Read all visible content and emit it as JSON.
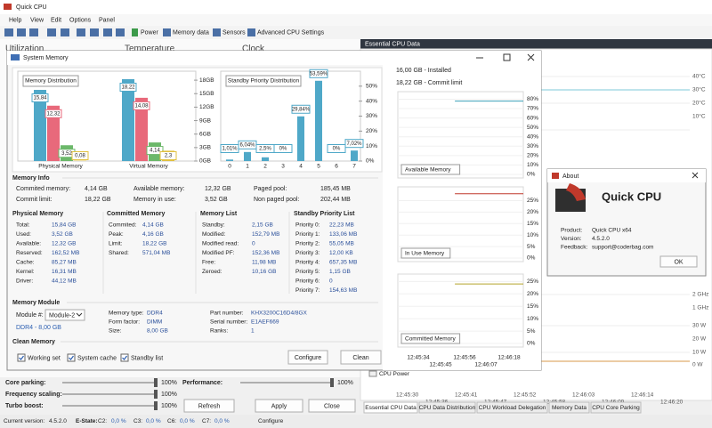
{
  "app": {
    "title": "Quick CPU",
    "menu": [
      "Help",
      "View",
      "Edit",
      "Options",
      "Panel"
    ],
    "toolbar": [
      "Power",
      "Memory data",
      "Sensors",
      "Advanced CPU Settings"
    ]
  },
  "background": {
    "panels": [
      "Utilization",
      "Temperature",
      "Clock"
    ],
    "data_title": "Essential CPU Data",
    "axis_labels": [
      "40°C",
      "30°C",
      "20°C",
      "10°C",
      "2 GHz",
      "1 GHz",
      "30 W",
      "20 W",
      "10 W",
      "0 W"
    ],
    "times": [
      "12:45:30",
      "12:45:36",
      "12:45:41",
      "12:45:47",
      "12:45:52",
      "12:45:58",
      "12:46:03",
      "12:46:09",
      "12:46:14",
      "12:46:20"
    ],
    "series_label": "CPU Power",
    "sliders": [
      {
        "label": "Core parking:",
        "value": "100%"
      },
      {
        "label": "Frequency scaling:",
        "value": "100%"
      },
      {
        "label": "Turbo boost:",
        "value": "100%"
      },
      {
        "label": "Performance:",
        "value": "100%"
      }
    ],
    "buttons": [
      "Refresh",
      "Apply",
      "Close"
    ],
    "tabs": [
      "Essential CPU Data",
      "CPU Data Distribution",
      "CPU Workload Delegation",
      "Memory Data",
      "CPU Core Parking"
    ],
    "status": [
      "Current version:",
      "4.5.2.0",
      "E-State:",
      "C2:",
      "0,0 %",
      "C3:",
      "0,0 %",
      "C6:",
      "0,0 %",
      "C7:",
      "0,0 %",
      "Configure"
    ]
  },
  "memory_window": {
    "title": "System Memory",
    "distribution": {
      "type": "bar",
      "title": "Memory Distribution",
      "categories": [
        "Physical Memory",
        "Virtual Memory"
      ],
      "series": [
        {
          "color": "#4fa8c8",
          "values": [
            15.84,
            18.22
          ],
          "value_labels": [
            "15,84",
            "18,22"
          ]
        },
        {
          "color": "#e8697b",
          "values": [
            12.32,
            14.08
          ],
          "value_labels": [
            "12,32",
            "14,08"
          ]
        },
        {
          "color": "#6cb86a",
          "values": [
            3.52,
            4.14
          ],
          "value_labels": [
            "3,52",
            "4,14"
          ]
        },
        {
          "color": "#e0c040",
          "values": [
            0.08,
            2.3
          ],
          "value_labels": [
            "0,08",
            "2,3"
          ]
        }
      ],
      "ylim": [
        0,
        20
      ],
      "yticks": [
        {
          "value": 18,
          "label": "18GB"
        },
        {
          "value": 15,
          "label": "15GB"
        },
        {
          "value": 12,
          "label": "12GB"
        },
        {
          "value": 9,
          "label": "9GB"
        },
        {
          "value": 6,
          "label": "6GB"
        },
        {
          "value": 3,
          "label": "3GB"
        },
        {
          "value": 0,
          "label": "0GB"
        }
      ]
    },
    "standby": {
      "type": "bar",
      "title": "Standby Priority Distribution",
      "categories": [
        "0",
        "1",
        "2",
        "3",
        "4",
        "5",
        "6",
        "7"
      ],
      "values": [
        1.01,
        6.04,
        2.5,
        0,
        29.84,
        53.59,
        0,
        7.02
      ],
      "value_labels": [
        "1,01%",
        "6,04%",
        "2,5%",
        "0%",
        "29,84%",
        "53,59%",
        "0%",
        "7,02%"
      ],
      "color": "#4fa8c8",
      "ylim": [
        0,
        60
      ],
      "yticks": [
        {
          "value": 50,
          "label": "50%"
        },
        {
          "value": 40,
          "label": "40%"
        },
        {
          "value": 30,
          "label": "30%"
        },
        {
          "value": 20,
          "label": "20%"
        },
        {
          "value": 10,
          "label": "10%"
        },
        {
          "value": 0,
          "label": "0%"
        }
      ]
    },
    "installed": "16,00 GB - Installed",
    "commit_limit": "18,22 GB - Commit limit",
    "usage_charts": [
      {
        "type": "line",
        "title": "Available Memory",
        "color": "#3aa0b8",
        "values": [
          null,
          null,
          null,
          null,
          null,
          78,
          78,
          78,
          78,
          78,
          78,
          78
        ],
        "ylim": [
          0,
          88
        ],
        "yticks": [
          {
            "value": 80,
            "label": "80%"
          },
          {
            "value": 70,
            "label": "70%"
          },
          {
            "value": 60,
            "label": "60%"
          },
          {
            "value": 50,
            "label": "50%"
          },
          {
            "value": 40,
            "label": "40%"
          },
          {
            "value": 30,
            "label": "30%"
          },
          {
            "value": 20,
            "label": "20%"
          },
          {
            "value": 10,
            "label": "10%"
          },
          {
            "value": 0,
            "label": "0%"
          }
        ]
      },
      {
        "type": "line",
        "title": "In Use Memory",
        "color": "#c0392b",
        "values": [
          null,
          null,
          null,
          null,
          null,
          28,
          28,
          28,
          28,
          28,
          28,
          28
        ],
        "ylim": [
          0,
          31
        ],
        "yticks": [
          {
            "value": 25,
            "label": "25%"
          },
          {
            "value": 20,
            "label": "20%"
          },
          {
            "value": 15,
            "label": "15%"
          },
          {
            "value": 10,
            "label": "10%"
          },
          {
            "value": 5,
            "label": "5%"
          },
          {
            "value": 0,
            "label": "0%"
          }
        ]
      },
      {
        "type": "line",
        "title": "Committed Memory",
        "color": "#b5a32a",
        "values": [
          null,
          null,
          null,
          null,
          null,
          24,
          24,
          24,
          24,
          24,
          24,
          24
        ],
        "ylim": [
          0,
          28
        ],
        "yticks": [
          {
            "value": 25,
            "label": "25%"
          },
          {
            "value": 20,
            "label": "20%"
          },
          {
            "value": 15,
            "label": "15%"
          },
          {
            "value": 10,
            "label": "10%"
          },
          {
            "value": 5,
            "label": "5%"
          },
          {
            "value": 0,
            "label": "0%"
          }
        ]
      }
    ],
    "time_labels": [
      "12:45:34",
      "12:45:45",
      "12:45:56",
      "12:46:07",
      "12:46:18"
    ],
    "info": {
      "title": "Memory Info",
      "rows": [
        [
          "Commited memory:",
          "4,14 GB",
          "Available memory:",
          "12,32 GB",
          "Paged pool:",
          "185,45 MB"
        ],
        [
          "Commit limit:",
          "18,22 GB",
          "Memory in use:",
          "3,52 GB",
          "Non paged pool:",
          "202,44 MB"
        ]
      ]
    },
    "lists": [
      {
        "title": "Physical Memory",
        "rows": [
          [
            "Total:",
            "15,84 GB"
          ],
          [
            "Used:",
            "3,52 GB"
          ],
          [
            "Available:",
            "12,32 GB"
          ],
          [
            "Reserved:",
            "162,52 MB"
          ],
          [
            "Cache:",
            "85,27 MB"
          ],
          [
            "Kernel:",
            "16,31 MB"
          ],
          [
            "Driver:",
            "44,12 MB"
          ]
        ]
      },
      {
        "title": "Committed Memory",
        "rows": [
          [
            "Commited:",
            "4,14 GB"
          ],
          [
            "Peak:",
            "4,16 GB"
          ],
          [
            "Limit:",
            "18,22 GB"
          ],
          [
            "Shared:",
            "571,04 MB"
          ]
        ]
      },
      {
        "title": "Memory List",
        "rows": [
          [
            "Standby:",
            "2,15 GB"
          ],
          [
            "Modified:",
            "152,79 MB"
          ],
          [
            "Modified read:",
            "0"
          ],
          [
            "Modified PF:",
            "152,36 MB"
          ],
          [
            "Free:",
            "11,98 MB"
          ],
          [
            "Zeroed:",
            "10,16 GB"
          ]
        ]
      },
      {
        "title": "Standby Priority List",
        "rows": [
          [
            "Priority 0:",
            "22,23 MB"
          ],
          [
            "Priority 1:",
            "133,06 MB"
          ],
          [
            "Priority 2:",
            "55,05 MB"
          ],
          [
            "Priority 3:",
            "12,00 KB"
          ],
          [
            "Priority 4:",
            "657,35 MB"
          ],
          [
            "Priority 5:",
            "1,15 GB"
          ],
          [
            "Priority 6:",
            "0"
          ],
          [
            "Priority 7:",
            "154,63 MB"
          ]
        ]
      }
    ],
    "module": {
      "title": "Memory Module",
      "selector_label": "Module #:",
      "selected": "Module-2",
      "summary": "DDR4 - 8,00 GB",
      "specs": [
        [
          "Memory type:",
          "DDR4"
        ],
        [
          "Form factor:",
          "DIMM"
        ],
        [
          "Size:",
          "8,00 GB"
        ],
        [
          "Part number:",
          "KHX3200C16D4/8GX"
        ],
        [
          "Serial number:",
          "E1AEF669"
        ],
        [
          "Ranks:",
          "1"
        ]
      ]
    },
    "clean": {
      "title": "Clean Memory",
      "options": [
        "Working set",
        "System cache",
        "Standby list"
      ],
      "buttons": [
        "Configure",
        "Clean"
      ]
    }
  },
  "about": {
    "title": "About",
    "product_name": "Quick CPU",
    "fields": [
      [
        "Product:",
        "Quick CPU x64"
      ],
      [
        "Version:",
        "4.5.2.0"
      ],
      [
        "Feedback:",
        "support@coderbag.com"
      ]
    ],
    "button": "OK"
  }
}
